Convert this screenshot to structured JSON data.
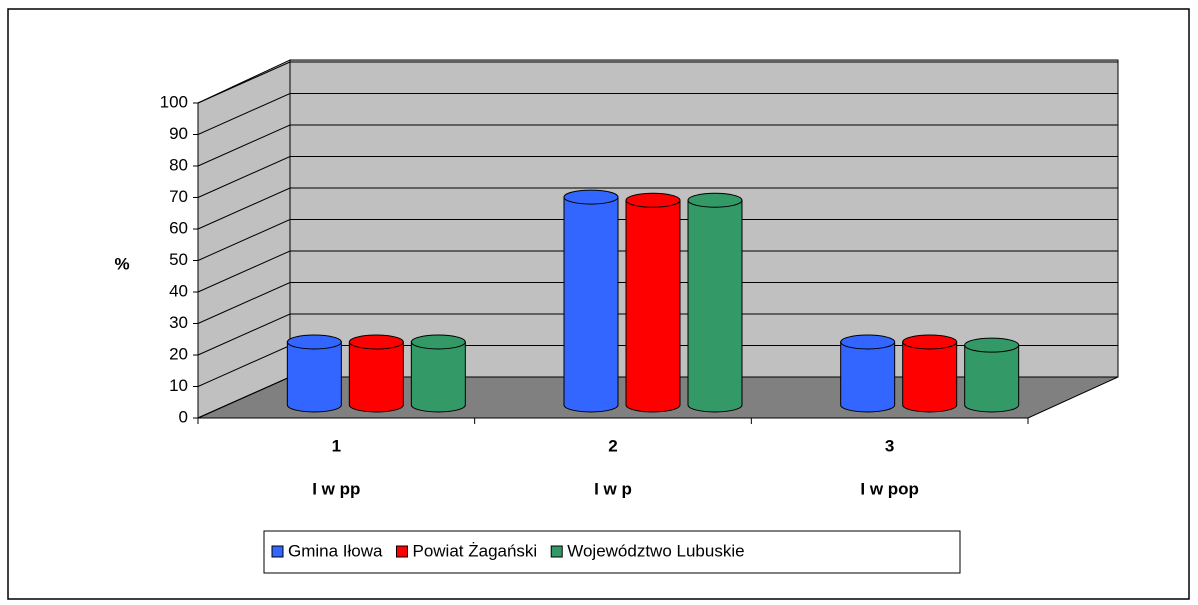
{
  "chart_data": {
    "type": "bar3d",
    "y_label": "%",
    "categories": [
      "1",
      "2",
      "3"
    ],
    "category_labels": [
      "I w pp",
      "I w p",
      "I w pop"
    ],
    "series": [
      {
        "name": "Gmina Iłowa",
        "color": "#3366ff",
        "values": [
          20,
          66,
          20
        ]
      },
      {
        "name": "Powiat Żagański",
        "color": "#ff0000",
        "values": [
          20,
          65,
          20
        ]
      },
      {
        "name": "Województwo Lubuskie",
        "color": "#339966",
        "values": [
          20,
          65,
          19
        ]
      }
    ],
    "ylim": [
      0,
      100
    ],
    "yticks": [
      0,
      10,
      20,
      30,
      40,
      50,
      60,
      70,
      80,
      90,
      100
    ],
    "grid": true,
    "legend": "bottom"
  }
}
